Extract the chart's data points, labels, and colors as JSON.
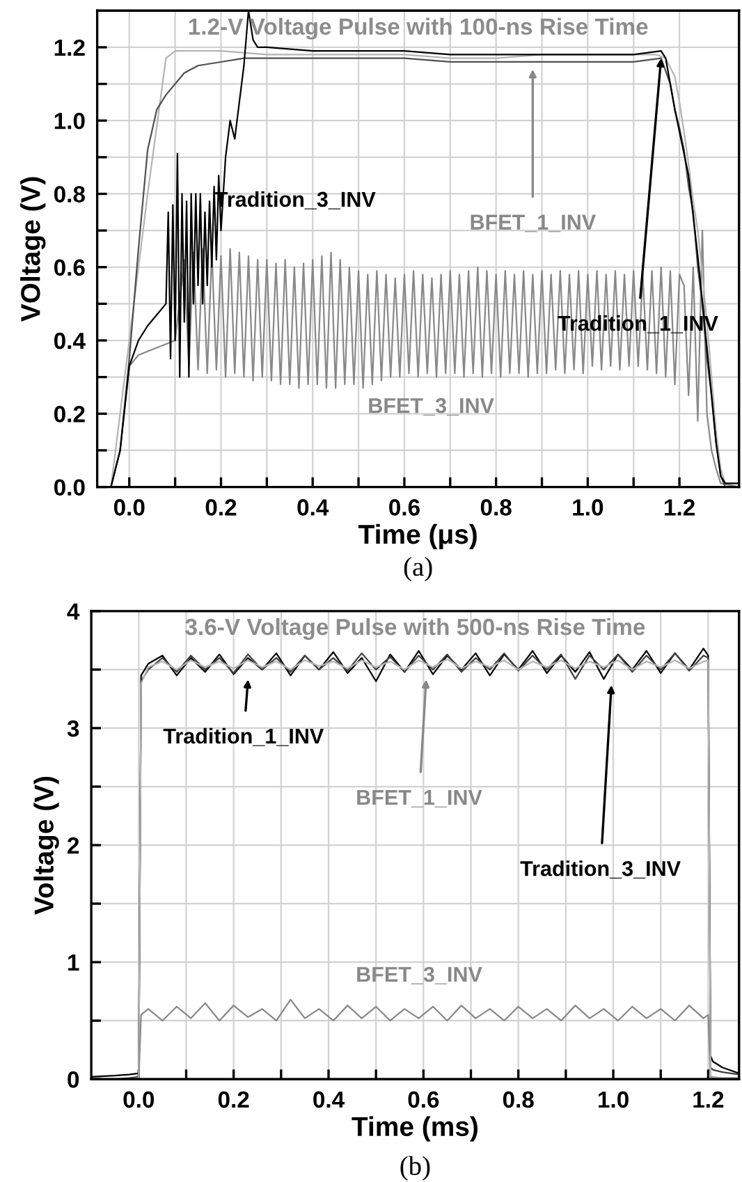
{
  "chart_data": [
    {
      "type": "line",
      "title": "1.2-V Voltage Pulse with 100-ns Rise Time",
      "xlabel": "Time (μs)",
      "ylabel": "VOltage (V)",
      "xlim": [
        -0.07,
        1.33
      ],
      "ylim": [
        0,
        1.3
      ],
      "xticks": [
        {
          "value": 0,
          "label": "0.0"
        },
        {
          "value": 0.1,
          "label": null
        },
        {
          "value": 0.2,
          "label": "0.2"
        },
        {
          "value": 0.3,
          "label": null
        },
        {
          "value": 0.4,
          "label": "0.4"
        },
        {
          "value": 0.5,
          "label": null
        },
        {
          "value": 0.6,
          "label": "0.6"
        },
        {
          "value": 0.7,
          "label": null
        },
        {
          "value": 0.8,
          "label": "0.8"
        },
        {
          "value": 0.9,
          "label": null
        },
        {
          "value": 1.0,
          "label": "1.0"
        },
        {
          "value": 1.1,
          "label": null
        },
        {
          "value": 1.2,
          "label": "1.2"
        }
      ],
      "yticks": [
        {
          "value": 0,
          "label": "0.0"
        },
        {
          "value": 0.1,
          "label": null
        },
        {
          "value": 0.2,
          "label": "0.2"
        },
        {
          "value": 0.3,
          "label": null
        },
        {
          "value": 0.4,
          "label": "0.4"
        },
        {
          "value": 0.5,
          "label": null
        },
        {
          "value": 0.6,
          "label": "0.6"
        },
        {
          "value": 0.7,
          "label": null
        },
        {
          "value": 0.8,
          "label": "0.8"
        },
        {
          "value": 0.9,
          "label": null
        },
        {
          "value": 1.0,
          "label": "1.0"
        },
        {
          "value": 1.1,
          "label": null
        },
        {
          "value": 1.2,
          "label": "1.2"
        }
      ],
      "grid": true,
      "series": [
        {
          "color": "#888888",
          "x": [
            -0.07,
            -0.04,
            -0.02,
            0.0,
            0.02,
            0.04,
            0.06,
            0.08,
            0.1,
            0.12,
            0.13,
            0.14,
            0.15,
            0.16,
            0.17,
            0.18,
            0.19,
            0.2,
            0.21,
            0.22,
            0.23,
            0.24,
            0.25,
            0.26,
            0.27,
            0.28,
            0.29,
            0.3,
            0.31,
            0.32,
            0.33,
            0.34,
            0.35,
            0.36,
            0.37,
            0.38,
            0.39,
            0.4,
            0.41,
            0.42,
            0.43,
            0.44,
            0.45,
            0.46,
            0.47,
            0.48,
            0.49,
            0.5,
            0.51,
            0.52,
            0.53,
            0.54,
            0.55,
            0.56,
            0.57,
            0.58,
            0.59,
            0.6,
            0.61,
            0.62,
            0.63,
            0.64,
            0.65,
            0.66,
            0.67,
            0.68,
            0.69,
            0.7,
            0.71,
            0.72,
            0.73,
            0.74,
            0.75,
            0.76,
            0.77,
            0.78,
            0.79,
            0.8,
            0.81,
            0.82,
            0.83,
            0.84,
            0.85,
            0.86,
            0.87,
            0.88,
            0.89,
            0.9,
            0.91,
            0.92,
            0.93,
            0.94,
            0.95,
            0.96,
            0.97,
            0.98,
            0.99,
            1.0,
            1.01,
            1.02,
            1.03,
            1.04,
            1.05,
            1.06,
            1.07,
            1.08,
            1.09,
            1.1,
            1.11,
            1.12,
            1.13,
            1.14,
            1.15,
            1.16,
            1.17,
            1.18,
            1.19,
            1.2,
            1.21,
            1.22,
            1.23,
            1.24,
            1.25,
            1.26,
            1.27,
            1.28,
            1.29,
            1.33
          ],
          "values": [
            0,
            0,
            0.1,
            0.33,
            0.36,
            0.37,
            0.38,
            0.39,
            0.4,
            0.62,
            0.33,
            0.64,
            0.32,
            0.65,
            0.31,
            0.64,
            0.32,
            0.63,
            0.3,
            0.65,
            0.31,
            0.64,
            0.3,
            0.63,
            0.29,
            0.62,
            0.3,
            0.62,
            0.29,
            0.61,
            0.28,
            0.62,
            0.28,
            0.6,
            0.27,
            0.61,
            0.28,
            0.62,
            0.28,
            0.63,
            0.27,
            0.64,
            0.27,
            0.62,
            0.28,
            0.6,
            0.28,
            0.59,
            0.27,
            0.58,
            0.28,
            0.59,
            0.29,
            0.58,
            0.3,
            0.57,
            0.3,
            0.58,
            0.31,
            0.59,
            0.3,
            0.58,
            0.31,
            0.57,
            0.3,
            0.58,
            0.31,
            0.59,
            0.31,
            0.58,
            0.3,
            0.59,
            0.31,
            0.6,
            0.3,
            0.59,
            0.31,
            0.58,
            0.3,
            0.59,
            0.31,
            0.58,
            0.31,
            0.59,
            0.3,
            0.58,
            0.31,
            0.59,
            0.31,
            0.58,
            0.32,
            0.59,
            0.31,
            0.58,
            0.32,
            0.59,
            0.31,
            0.58,
            0.33,
            0.59,
            0.32,
            0.58,
            0.33,
            0.59,
            0.32,
            0.58,
            0.33,
            0.59,
            0.33,
            0.58,
            0.32,
            0.59,
            0.31,
            0.6,
            0.3,
            0.59,
            0.28,
            0.58,
            0.55,
            0.25,
            0.6,
            0.18,
            0.7,
            0.2,
            0.1,
            0.05,
            0.01,
            0.0
          ]
        },
        {
          "color": "#b4b4b4",
          "x": [
            -0.07,
            -0.04,
            0.0,
            0.04,
            0.08,
            0.1,
            0.15,
            0.2,
            0.3,
            0.4,
            0.5,
            0.6,
            0.7,
            0.8,
            0.9,
            1.0,
            1.1,
            1.15,
            1.17,
            1.19,
            1.2,
            1.21,
            1.22,
            1.23,
            1.24,
            1.25,
            1.26,
            1.27,
            1.28,
            1.29,
            1.3,
            1.33
          ],
          "values": [
            0,
            0,
            0.4,
            0.8,
            1.17,
            1.19,
            1.19,
            1.19,
            1.18,
            1.18,
            1.18,
            1.18,
            1.17,
            1.17,
            1.18,
            1.18,
            1.18,
            1.18,
            1.17,
            1.12,
            1.05,
            0.97,
            0.88,
            0.78,
            0.7,
            0.58,
            0.45,
            0.3,
            0.15,
            0.05,
            0.01,
            0.01
          ]
        },
        {
          "color": "#505050",
          "x": [
            -0.07,
            -0.04,
            -0.02,
            0.0,
            0.02,
            0.04,
            0.06,
            0.08,
            0.1,
            0.12,
            0.15,
            0.2,
            0.25,
            0.3,
            0.4,
            0.5,
            0.6,
            0.7,
            0.8,
            0.9,
            1.0,
            1.1,
            1.16,
            1.18,
            1.19,
            1.2,
            1.21,
            1.22,
            1.23,
            1.24,
            1.25,
            1.26,
            1.27,
            1.28,
            1.29,
            1.3,
            1.33
          ],
          "values": [
            0,
            0,
            0.1,
            0.35,
            0.65,
            0.92,
            1.03,
            1.07,
            1.1,
            1.13,
            1.15,
            1.16,
            1.17,
            1.17,
            1.17,
            1.17,
            1.17,
            1.16,
            1.16,
            1.16,
            1.16,
            1.16,
            1.17,
            1.1,
            1.03,
            0.98,
            0.92,
            0.82,
            0.75,
            0.6,
            0.5,
            0.35,
            0.25,
            0.12,
            0.03,
            0,
            0
          ]
        },
        {
          "color": "#000000",
          "x": [
            -0.07,
            -0.04,
            -0.02,
            0.0,
            0.02,
            0.04,
            0.06,
            0.08,
            0.085,
            0.09,
            0.095,
            0.1,
            0.105,
            0.11,
            0.115,
            0.12,
            0.125,
            0.13,
            0.135,
            0.14,
            0.145,
            0.15,
            0.155,
            0.16,
            0.165,
            0.17,
            0.175,
            0.18,
            0.185,
            0.19,
            0.195,
            0.2,
            0.21,
            0.22,
            0.23,
            0.24,
            0.25,
            0.26,
            0.27,
            0.28,
            0.3,
            0.4,
            0.5,
            0.6,
            0.7,
            0.8,
            0.9,
            1.0,
            1.1,
            1.16,
            1.17,
            1.18,
            1.19,
            1.2,
            1.22,
            1.24,
            1.26,
            1.28,
            1.29,
            1.3,
            1.33
          ],
          "values": [
            0,
            0,
            0.1,
            0.33,
            0.4,
            0.44,
            0.47,
            0.5,
            0.75,
            0.35,
            0.77,
            0.4,
            0.91,
            0.3,
            0.8,
            0.45,
            0.78,
            0.3,
            0.8,
            0.5,
            0.8,
            0.55,
            0.8,
            0.5,
            0.75,
            0.55,
            0.78,
            0.6,
            0.82,
            0.62,
            0.85,
            0.7,
            0.9,
            1.0,
            0.95,
            1.05,
            1.15,
            1.3,
            1.22,
            1.2,
            1.2,
            1.19,
            1.19,
            1.19,
            1.18,
            1.18,
            1.18,
            1.18,
            1.18,
            1.19,
            1.17,
            1.1,
            1.03,
            0.97,
            0.85,
            0.63,
            0.38,
            0.12,
            0.03,
            0.01,
            0.01
          ]
        }
      ],
      "annotations": [
        {
          "text": "Tradition_3_INV",
          "x": 0.17,
          "y": 0.78
        },
        {
          "text": "BFET_1_INV",
          "x": 0.88,
          "y": 1.14
        },
        {
          "text": "Tradition_1_INV",
          "x": 1.16,
          "y": 1.17
        },
        "BFET_3_INV",
        "(a)"
      ]
    },
    {
      "type": "line",
      "title": "3.6-V Voltage Pulse with 500-ns Rise Time",
      "xlabel": "Time (ms)",
      "ylabel": "Voltage (V)",
      "xlim": [
        -0.1,
        1.265
      ],
      "ylim": [
        0,
        4
      ],
      "xticks": [
        {
          "value": 0,
          "label": "0.0"
        },
        {
          "value": 0.1,
          "label": null
        },
        {
          "value": 0.2,
          "label": "0.2"
        },
        {
          "value": 0.3,
          "label": null
        },
        {
          "value": 0.4,
          "label": "0.4"
        },
        {
          "value": 0.5,
          "label": null
        },
        {
          "value": 0.6,
          "label": "0.6"
        },
        {
          "value": 0.7,
          "label": null
        },
        {
          "value": 0.8,
          "label": "0.8"
        },
        {
          "value": 0.9,
          "label": null
        },
        {
          "value": 1.0,
          "label": "1.0"
        },
        {
          "value": 1.1,
          "label": null
        },
        {
          "value": 1.2,
          "label": "1.2"
        }
      ],
      "yticks": [
        0,
        {
          "value": 0.5,
          "label": null
        },
        1,
        {
          "value": 1.5,
          "label": null
        },
        2,
        {
          "value": 2.5,
          "label": null
        },
        3,
        {
          "value": 3.5,
          "label": null
        },
        4
      ],
      "grid": true,
      "x": [
        -0.1,
        -0.05,
        -0.02,
        0.0,
        0.005,
        0.02,
        0.05,
        0.08,
        0.11,
        0.14,
        0.17,
        0.2,
        0.23,
        0.26,
        0.29,
        0.32,
        0.35,
        0.38,
        0.41,
        0.44,
        0.47,
        0.5,
        0.53,
        0.56,
        0.59,
        0.62,
        0.65,
        0.68,
        0.71,
        0.74,
        0.77,
        0.8,
        0.83,
        0.86,
        0.89,
        0.92,
        0.95,
        0.98,
        1.01,
        1.04,
        1.07,
        1.1,
        1.13,
        1.16,
        1.19,
        1.2,
        1.205,
        1.21,
        1.23,
        1.265
      ],
      "series": [
        {
          "color": "#888888",
          "values": [
            0,
            0,
            0,
            0.01,
            0.55,
            0.6,
            0.5,
            0.62,
            0.52,
            0.65,
            0.5,
            0.63,
            0.53,
            0.6,
            0.5,
            0.68,
            0.52,
            0.6,
            0.5,
            0.63,
            0.52,
            0.62,
            0.5,
            0.6,
            0.52,
            0.62,
            0.5,
            0.63,
            0.52,
            0.6,
            0.5,
            0.62,
            0.52,
            0.6,
            0.5,
            0.63,
            0.52,
            0.6,
            0.5,
            0.62,
            0.52,
            0.6,
            0.5,
            0.63,
            0.52,
            0.55,
            0.02,
            0.01,
            0.01,
            0.01
          ]
        },
        {
          "color": "#000000",
          "values": [
            0.02,
            0.03,
            0.04,
            0.05,
            3.45,
            3.55,
            3.62,
            3.45,
            3.6,
            3.48,
            3.63,
            3.46,
            3.6,
            3.5,
            3.64,
            3.45,
            3.62,
            3.5,
            3.65,
            3.47,
            3.6,
            3.4,
            3.63,
            3.48,
            3.66,
            3.46,
            3.62,
            3.5,
            3.64,
            3.45,
            3.63,
            3.5,
            3.66,
            3.47,
            3.62,
            3.48,
            3.65,
            3.42,
            3.63,
            3.5,
            3.66,
            3.47,
            3.64,
            3.5,
            3.68,
            3.62,
            0.2,
            0.15,
            0.1,
            0.05
          ]
        },
        {
          "color": "#404040",
          "values": [
            0,
            0,
            0.01,
            0.02,
            3.4,
            3.5,
            3.6,
            3.48,
            3.62,
            3.5,
            3.6,
            3.47,
            3.63,
            3.5,
            3.6,
            3.48,
            3.62,
            3.5,
            3.6,
            3.49,
            3.64,
            3.5,
            3.61,
            3.48,
            3.62,
            3.5,
            3.63,
            3.48,
            3.6,
            3.5,
            3.64,
            3.49,
            3.62,
            3.5,
            3.63,
            3.42,
            3.62,
            3.5,
            3.63,
            3.48,
            3.62,
            3.5,
            3.64,
            3.49,
            3.62,
            3.6,
            0.1,
            0.08,
            0.06,
            0.04
          ]
        },
        {
          "color": "#b4b4b4",
          "values": [
            0,
            0,
            0,
            0.01,
            3.38,
            3.52,
            3.57,
            3.5,
            3.58,
            3.52,
            3.57,
            3.51,
            3.58,
            3.52,
            3.57,
            3.5,
            3.58,
            3.53,
            3.57,
            3.51,
            3.58,
            3.52,
            3.57,
            3.5,
            3.58,
            3.52,
            3.59,
            3.51,
            3.57,
            3.52,
            3.58,
            3.5,
            3.57,
            3.52,
            3.58,
            3.51,
            3.57,
            3.52,
            3.58,
            3.5,
            3.57,
            3.52,
            3.58,
            3.51,
            3.57,
            3.58,
            0.03,
            0.02,
            0.01,
            0.01
          ]
        }
      ],
      "annotations": [
        "Tradition_1_INV",
        "BFET_1_INV",
        "Tradition_3_INV",
        "BFET_3_INV",
        "(b)"
      ]
    }
  ]
}
